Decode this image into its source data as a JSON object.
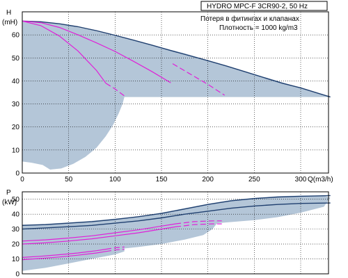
{
  "chart_data": [
    {
      "type": "line",
      "title": "HYDRO MPC-F 3CR90-2, 50 Hz",
      "notes": [
        "Потеря в фитингах и клапанах",
        "Плотность = 1000 kg/m3"
      ],
      "ylabel": [
        "H",
        "(mH)"
      ],
      "xlabel": "Q(m3/h)",
      "xlim": [
        0,
        330
      ],
      "ylim": [
        0,
        70
      ],
      "xticks": [
        0,
        50,
        100,
        150,
        200,
        250,
        300
      ],
      "yticks": [
        0,
        10,
        20,
        30,
        40,
        50,
        60
      ],
      "grid": true,
      "colors": {
        "envelope": "#b4c6d8",
        "system": "#1f3f6f",
        "pump": "#e020d8"
      },
      "series": [
        {
          "role": "envelope",
          "x": [
            0,
            25,
            50,
            75,
            100,
            125,
            150,
            175,
            200,
            225,
            250,
            275,
            300,
            325,
            332,
            325,
            300,
            250,
            200,
            150,
            110,
            108,
            104,
            98,
            90,
            80,
            68,
            55,
            42,
            30,
            22,
            10,
            0
          ],
          "y": [
            66,
            65.5,
            64,
            62,
            59.5,
            57,
            54.5,
            52,
            49,
            46,
            43,
            40,
            37,
            34,
            33,
            33,
            33,
            33,
            33,
            33,
            33,
            30,
            26,
            21,
            16,
            11,
            7,
            4,
            2,
            1.5,
            3.5,
            4.5,
            5
          ]
        },
        {
          "role": "system",
          "x": [
            0,
            20,
            40,
            60,
            80,
            100,
            120,
            140,
            160,
            180,
            200,
            220,
            240,
            260,
            280,
            300,
            320,
            332
          ],
          "y": [
            66,
            65.7,
            64.8,
            63.5,
            61.8,
            59.8,
            57.7,
            55.5,
            53.2,
            51,
            48.8,
            46.5,
            44,
            41.5,
            39,
            37,
            34.5,
            33
          ]
        },
        {
          "role": "pump",
          "x": [
            0,
            20,
            40,
            60,
            80,
            100,
            120,
            140,
            160
          ],
          "y": [
            66,
            65.3,
            63.2,
            60,
            56.5,
            52.8,
            48.5,
            44,
            39.2
          ],
          "dashed_from": 162,
          "dash_x": [
            162,
            180,
            200,
            218
          ],
          "dash_y": [
            47.5,
            43.2,
            38.5,
            33.8
          ]
        },
        {
          "role": "pump",
          "x": [
            0,
            20,
            40,
            60,
            80,
            90
          ],
          "y": [
            66,
            64,
            59.5,
            53,
            44.5,
            39
          ],
          "dash_x": [
            90,
            100,
            110
          ],
          "dash_y": [
            39,
            36.5,
            33.5
          ]
        }
      ]
    },
    {
      "type": "line",
      "ylabel": [
        "P",
        "(kW)"
      ],
      "xlim": [
        0,
        330
      ],
      "ylim": [
        0,
        55
      ],
      "yticks": [
        0,
        10,
        20,
        30,
        40,
        50
      ],
      "grid": true,
      "series": [
        {
          "role": "envelope",
          "x": [
            0,
            25,
            50,
            75,
            100,
            125,
            150,
            175,
            200,
            225,
            250,
            275,
            300,
            325,
            332,
            325,
            300,
            275,
            250,
            210,
            205,
            195,
            175,
            150,
            125,
            110,
            110,
            100,
            75,
            50,
            25,
            0
          ],
          "y": [
            33,
            33.5,
            34.5,
            35.5,
            37,
            38.5,
            41,
            44,
            47,
            49.5,
            51,
            52,
            52.5,
            52.5,
            51,
            45,
            41,
            38,
            36,
            34,
            30,
            26,
            23,
            20,
            18,
            17,
            15,
            13,
            10,
            7,
            4,
            2
          ]
        },
        {
          "role": "system",
          "x": [
            0,
            25,
            50,
            75,
            100,
            125,
            150,
            175,
            200,
            225,
            250,
            275,
            300,
            332
          ],
          "y": [
            32.5,
            33,
            34,
            35,
            36.5,
            38.3,
            40.5,
            43.5,
            46.5,
            49,
            50.5,
            51.5,
            52,
            52.5
          ]
        },
        {
          "role": "system",
          "x": [
            0,
            25,
            50,
            75,
            100,
            125,
            150,
            175,
            200,
            225,
            250,
            275,
            300,
            332
          ],
          "y": [
            30,
            30.8,
            31.6,
            32.5,
            34,
            35.5,
            37.5,
            40,
            42,
            44,
            45.5,
            46.5,
            47.2,
            47.5
          ]
        },
        {
          "role": "pump",
          "x": [
            0,
            25,
            50,
            75,
            100,
            125,
            150,
            165
          ],
          "y": [
            22,
            22.8,
            24,
            25.5,
            27.5,
            29.5,
            32,
            33.5
          ],
          "dash_x": [
            165,
            185,
            205,
            215
          ],
          "dash_y": [
            33.5,
            35,
            35.5,
            35.5
          ]
        },
        {
          "role": "pump",
          "x": [
            0,
            25,
            50,
            75,
            100,
            125,
            150,
            165
          ],
          "y": [
            20,
            20.8,
            22,
            23.5,
            25.5,
            27.5,
            30,
            31.5
          ],
          "dash_x": [
            165,
            185,
            205,
            215
          ],
          "dash_y": [
            31.5,
            33,
            33.5,
            33.5
          ]
        },
        {
          "role": "pump",
          "x": [
            0,
            20,
            40,
            60,
            80,
            90
          ],
          "y": [
            11,
            11.8,
            12.8,
            14,
            15.5,
            16.5
          ],
          "dash_x": [
            90,
            100,
            110
          ],
          "dash_y": [
            16.5,
            17.5,
            18
          ]
        },
        {
          "role": "pump",
          "x": [
            0,
            20,
            40,
            60,
            80,
            90
          ],
          "y": [
            9.5,
            10.3,
            11.3,
            12.5,
            14,
            15
          ],
          "dash_x": [
            90,
            100,
            110
          ],
          "dash_y": [
            15,
            16,
            16.5
          ]
        }
      ]
    }
  ]
}
